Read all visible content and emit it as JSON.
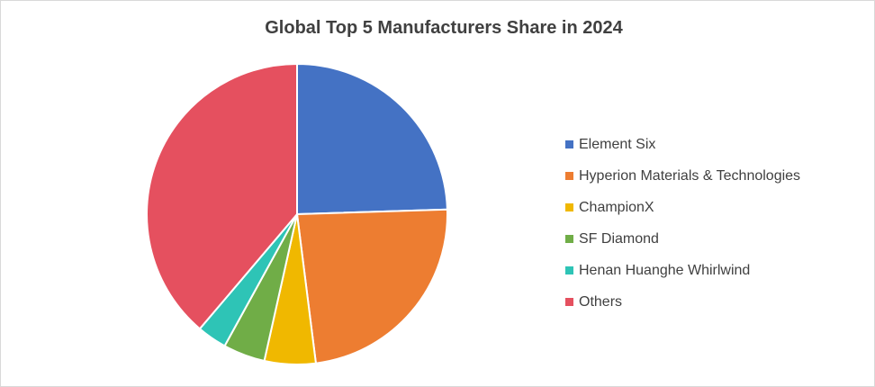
{
  "chart_data": {
    "type": "pie",
    "title": "Global Top 5 Manufacturers Share in 2024",
    "legend_position": "right",
    "slices": [
      {
        "label": "Element Six",
        "value": 24.5,
        "color": "#4472C4"
      },
      {
        "label": "Hyperion Materials & Technologies",
        "value": 23.5,
        "color": "#ED7D31"
      },
      {
        "label": "ChampionX",
        "value": 5.5,
        "color": "#F0B800"
      },
      {
        "label": "SF Diamond",
        "value": 4.5,
        "color": "#70AD47"
      },
      {
        "label": "Henan Huanghe Whirlwind",
        "value": 3.2,
        "color": "#2EC4B6"
      },
      {
        "label": "Others",
        "value": 38.8,
        "color": "#E5505F"
      }
    ]
  }
}
